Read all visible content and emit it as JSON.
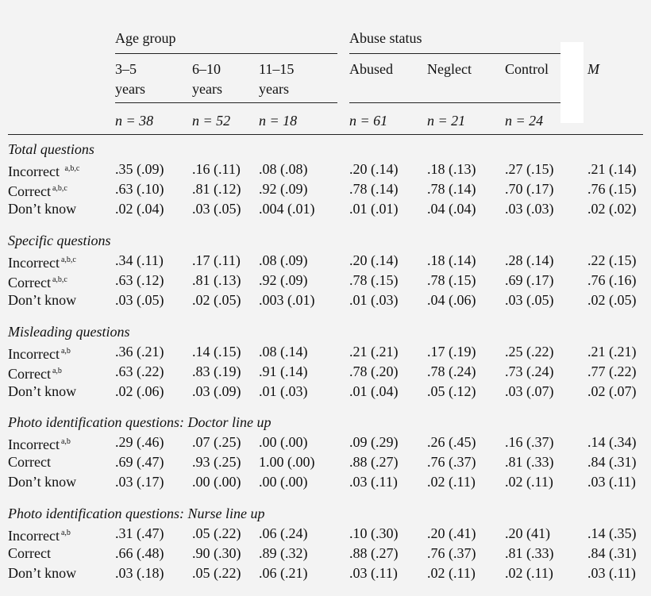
{
  "header": {
    "age_group": "Age group",
    "abuse_status": "Abuse status",
    "age_cols": [
      {
        "line1": "3–5",
        "line2": "years",
        "n": "n = 38"
      },
      {
        "line1": "6–10",
        "line2": "years",
        "n": "n = 52"
      },
      {
        "line1": "11–15",
        "line2": "years",
        "n": "n = 18"
      }
    ],
    "abuse_cols": [
      {
        "label": "Abused",
        "n": "n = 61"
      },
      {
        "label": "Neglect",
        "n": "n = 21"
      },
      {
        "label": "Control",
        "n": "n = 24"
      }
    ],
    "mean_col": "M"
  },
  "sections": [
    {
      "title": "Total questions",
      "rows": [
        {
          "label": "Incorrect ",
          "sup": "a,b,c",
          "values": [
            ".35 (.09)",
            ".16 (.11)",
            ".08 (.08)",
            ".20 (.14)",
            ".18 (.13)",
            ".27 (.15)",
            ".21 (.14)"
          ]
        },
        {
          "label": "Correct",
          "sup": "a,b,c",
          "values": [
            ".63 (.10)",
            ".81 (.12)",
            ".92 (.09)",
            ".78 (.14)",
            ".78 (.14)",
            ".70 (.17)",
            ".76 (.15)"
          ]
        },
        {
          "label": "Don’t know",
          "sup": "",
          "values": [
            ".02 (.04)",
            ".03 (.05)",
            ".004 (.01)",
            ".01 (.01)",
            ".04 (.04)",
            ".03 (.03)",
            ".02 (.02)"
          ]
        }
      ]
    },
    {
      "title": "Specific questions",
      "rows": [
        {
          "label": "Incorrect",
          "sup": "a,b,c",
          "values": [
            ".34 (.11)",
            ".17 (.11)",
            ".08 (.09)",
            ".20 (.14)",
            ".18 (.14)",
            ".28 (.14)",
            ".22 (.15)"
          ]
        },
        {
          "label": "Correct",
          "sup": "a,b,c",
          "values": [
            ".63 (.12)",
            ".81 (.13)",
            ".92 (.09)",
            ".78 (.15)",
            ".78 (.15)",
            ".69 (.17)",
            ".76 (.16)"
          ]
        },
        {
          "label": "Don’t know",
          "sup": "",
          "values": [
            ".03 (.05)",
            ".02 (.05)",
            ".003 (.01)",
            ".01 (.03)",
            ".04 (.06)",
            ".03 (.05)",
            ".02 (.05)"
          ]
        }
      ]
    },
    {
      "title": "Misleading questions",
      "rows": [
        {
          "label": "Incorrect",
          "sup": "a,b",
          "values": [
            ".36 (.21)",
            ".14 (.15)",
            ".08 (.14)",
            ".21 (.21)",
            ".17 (.19)",
            ".25 (.22)",
            ".21 (.21)"
          ]
        },
        {
          "label": "Correct",
          "sup": "a,b",
          "values": [
            ".63 (.22)",
            ".83 (.19)",
            ".91 (.14)",
            ".78 (.20)",
            ".78 (.24)",
            ".73 (.24)",
            ".77 (.22)"
          ]
        },
        {
          "label": "Don’t know",
          "sup": "",
          "values": [
            ".02 (.06)",
            ".03 (.09)",
            ".01 (.03)",
            ".01 (.04)",
            ".05 (.12)",
            ".03 (.07)",
            ".02 (.07)"
          ]
        }
      ]
    },
    {
      "title": "Photo identification questions: Doctor line up",
      "rows": [
        {
          "label": "Incorrect",
          "sup": "a,b",
          "values": [
            ".29 (.46)",
            ".07 (.25)",
            ".00 (.00)",
            ".09 (.29)",
            ".26 (.45)",
            ".16 (.37)",
            ".14 (.34)"
          ]
        },
        {
          "label": "Correct",
          "sup": "",
          "values": [
            ".69 (.47)",
            ".93 (.25)",
            "1.00 (.00)",
            ".88 (.27)",
            ".76 (.37)",
            ".81 (.33)",
            ".84 (.31)"
          ]
        },
        {
          "label": "Don’t know",
          "sup": "",
          "values": [
            ".03 (.17)",
            ".00 (.00)",
            ".00 (.00)",
            ".03 (.11)",
            ".02 (.11)",
            ".02 (.11)",
            ".03 (.11)"
          ]
        }
      ]
    },
    {
      "title": "Photo identification questions: Nurse line up",
      "rows": [
        {
          "label": "Incorrect",
          "sup": "a,b",
          "values": [
            ".31 (.47)",
            ".05 (.22)",
            ".06 (.24)",
            ".10 (.30)",
            ".20 (.41)",
            ".20 (41)",
            ".14 (.35)"
          ]
        },
        {
          "label": "Correct",
          "sup": "",
          "values": [
            ".66 (.48)",
            ".90 (.30)",
            ".89 (.32)",
            ".88 (.27)",
            ".76 (.37)",
            ".81 (.33)",
            ".84 (.31)"
          ]
        },
        {
          "label": "Don’t know",
          "sup": "",
          "values": [
            ".03 (.18)",
            ".05 (.22)",
            ".06 (.21)",
            ".03 (.11)",
            ".02 (.11)",
            ".02 (.11)",
            ".03 (.11)"
          ]
        }
      ]
    }
  ]
}
